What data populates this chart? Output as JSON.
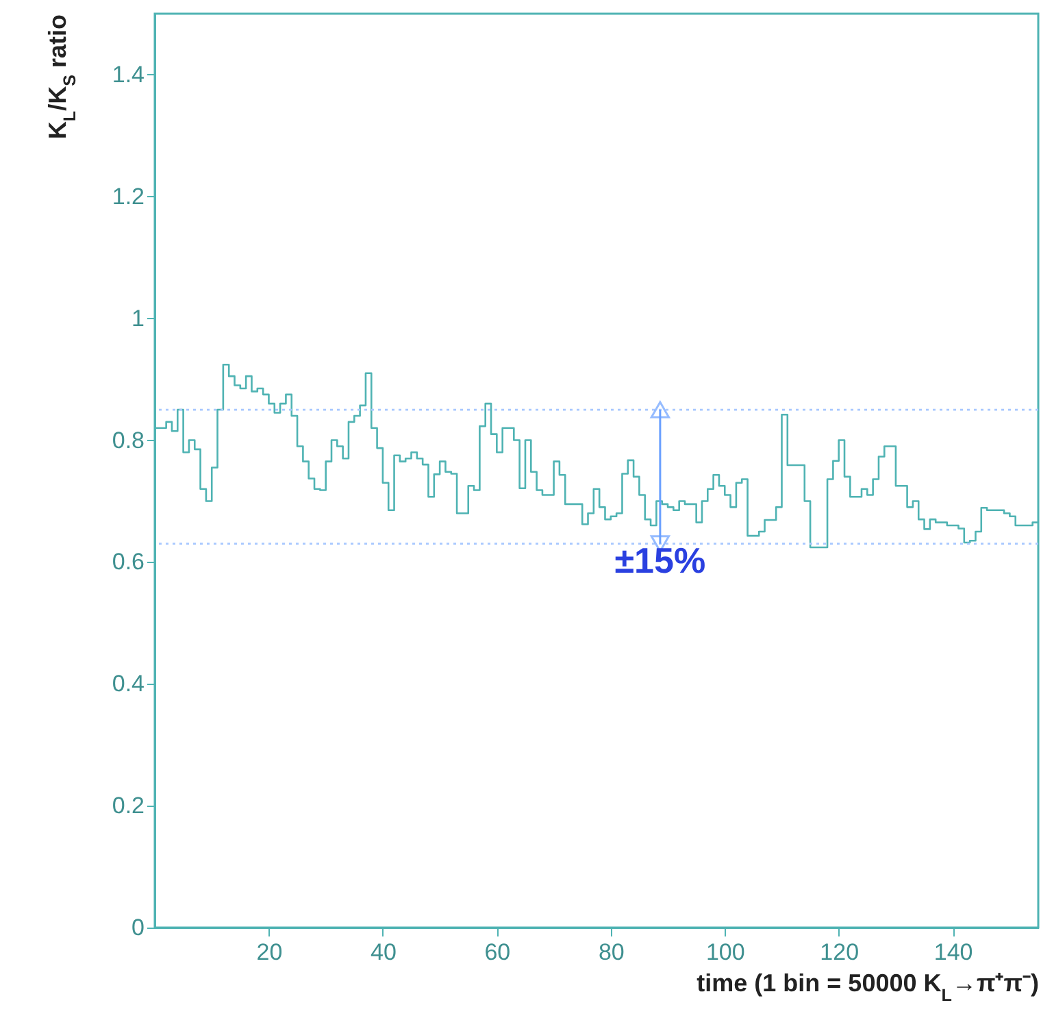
{
  "chart_data": {
    "type": "histogram",
    "xlabel": "time (1 bin = 50000 K$_{L}$→π⁺π⁻)",
    "ylabel": "K$_{L}$/K$_{S}$ ratio",
    "bins": [
      0,
      1,
      2,
      3,
      4,
      5,
      6,
      7,
      8,
      9,
      10,
      11,
      12,
      13,
      14,
      15,
      16,
      17,
      18,
      19,
      20,
      21,
      22,
      23,
      24,
      25,
      26,
      27,
      28,
      29,
      30,
      31,
      32,
      33,
      34,
      35,
      36,
      37,
      38,
      39,
      40,
      41,
      42,
      43,
      44,
      45,
      46,
      47,
      48,
      49,
      50,
      51,
      52,
      53,
      54,
      55,
      56,
      57,
      58,
      59,
      60,
      61,
      62,
      63,
      64,
      65,
      66,
      67,
      68,
      69,
      70,
      71,
      72,
      73,
      74,
      75,
      76,
      77,
      78,
      79,
      80,
      81,
      82,
      83,
      84,
      85,
      86,
      87,
      88,
      89,
      90,
      91,
      92,
      93,
      94,
      95,
      96,
      97,
      98,
      99,
      100,
      101,
      102,
      103,
      104,
      105,
      106,
      107,
      108,
      109,
      110,
      111,
      112,
      113,
      114,
      115,
      116,
      117,
      118,
      119,
      120,
      121,
      122,
      123,
      124,
      125,
      126,
      127,
      128,
      129,
      130,
      131,
      132,
      133,
      134,
      135,
      136,
      137,
      138,
      139,
      140,
      141,
      142,
      143,
      144,
      145,
      146,
      147,
      148,
      149,
      150,
      151,
      152,
      153,
      154,
      155
    ],
    "values": [
      0.82,
      0.82,
      0.83,
      0.815,
      0.85,
      0.78,
      0.8,
      0.785,
      0.72,
      0.7,
      0.755,
      0.85,
      0.924,
      0.905,
      0.89,
      0.885,
      0.905,
      0.88,
      0.885,
      0.875,
      0.86,
      0.845,
      0.86,
      0.875,
      0.84,
      0.79,
      0.765,
      0.737,
      0.72,
      0.718,
      0.765,
      0.8,
      0.79,
      0.77,
      0.83,
      0.84,
      0.857,
      0.91,
      0.82,
      0.787,
      0.73,
      0.685,
      0.775,
      0.765,
      0.77,
      0.78,
      0.77,
      0.76,
      0.707,
      0.744,
      0.765,
      0.748,
      0.745,
      0.68,
      0.68,
      0.725,
      0.718,
      0.823,
      0.86,
      0.81,
      0.78,
      0.82,
      0.82,
      0.8,
      0.721,
      0.8,
      0.748,
      0.718,
      0.71,
      0.71,
      0.765,
      0.743,
      0.695,
      0.695,
      0.695,
      0.662,
      0.68,
      0.72,
      0.69,
      0.67,
      0.675,
      0.68,
      0.745,
      0.767,
      0.74,
      0.71,
      0.67,
      0.66,
      0.7,
      0.695,
      0.69,
      0.685,
      0.7,
      0.695,
      0.695,
      0.665,
      0.7,
      0.72,
      0.743,
      0.725,
      0.71,
      0.69,
      0.73,
      0.736,
      0.643,
      0.643,
      0.65,
      0.669,
      0.669,
      0.69,
      0.842,
      0.759,
      0.759,
      0.759,
      0.7,
      0.624,
      0.624,
      0.624,
      0.736,
      0.766,
      0.8,
      0.74,
      0.707,
      0.707,
      0.72,
      0.71,
      0.736,
      0.773,
      0.79,
      0.79,
      0.725,
      0.725,
      0.69,
      0.7,
      0.67,
      0.654,
      0.67,
      0.665,
      0.665,
      0.66,
      0.66,
      0.655,
      0.632,
      0.635,
      0.65,
      0.689,
      0.685,
      0.685,
      0.685,
      0.68,
      0.675,
      0.66,
      0.66,
      0.66,
      0.665
    ],
    "color": "#4fb3b3",
    "xlim": [
      0,
      155
    ],
    "xticks": [
      20,
      40,
      60,
      80,
      100,
      120,
      140
    ],
    "ylim": [
      0,
      1.5
    ],
    "yticks": [
      0,
      0.2,
      0.4,
      0.6,
      0.8,
      1,
      1.2,
      1.4
    ],
    "ref_lines": [
      {
        "axis": "y",
        "value": 0.85,
        "color": "#a8c8ff",
        "line_style": "dotted"
      },
      {
        "axis": "y",
        "value": 0.63,
        "color": "#a8c8ff",
        "line_style": "dotted"
      }
    ],
    "annotations": [
      "±15%"
    ],
    "grid": false
  }
}
